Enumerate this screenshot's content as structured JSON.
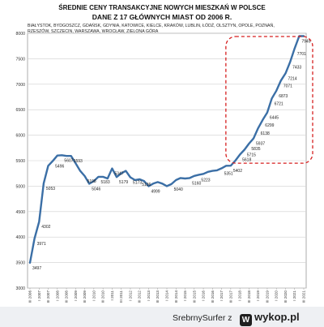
{
  "chart_data": {
    "type": "line",
    "title": "ŚREDNIE CENY TRANSAKCYJNE NOWYCH MIESZKAŃ W POLSCE",
    "subtitle": "DANE Z 17 GŁÓWNYCH MIAST OD 2006 R.",
    "cities_line_1": "BIAŁYSTOK, BYDGOSZCZ, GDAŃSK, GDYNIA, KATOWICE, KIELCE, KRAKÓW, LUBLIN, ŁÓDŹ, OLSZTYN, OPOLE, POZNAŃ,",
    "cities_line_2": "RZESZÓW, SZCZECIN, WARSZAWA, WROCŁAW, ZIELONA GÓRA",
    "ylim": [
      3000,
      8000
    ],
    "yticks": [
      3000,
      3500,
      4000,
      4500,
      5000,
      5500,
      6000,
      6500,
      7000,
      7500,
      8000
    ],
    "line_color": "#3b6fa6",
    "highlight_color": "#d61f1f",
    "highlight_range": [
      "III 2017",
      "III 2021"
    ],
    "x": [
      "III 2006",
      "IV 2006",
      "I 2007",
      "II 2007",
      "III 2007",
      "IV 2007",
      "I 2008",
      "II 2008",
      "III 2008",
      "IV 2008",
      "I 2009",
      "II 2009",
      "III 2009",
      "IV 2009",
      "I 2010",
      "II 2010",
      "III 2010",
      "IV 2010",
      "I 2011",
      "II 2011",
      "III 2011",
      "IV 2011",
      "I 2012",
      "II 2012",
      "III 2012",
      "IV 2012",
      "I 2013",
      "II 2013",
      "III 2013",
      "IV 2013",
      "I 2014",
      "II 2014",
      "III 2014",
      "IV 2014",
      "I 2015",
      "II 2015",
      "III 2015",
      "IV 2015",
      "I 2016",
      "II 2016",
      "III 2016",
      "IV 2016",
      "I 2017",
      "II 2017",
      "III 2017",
      "IV 2017",
      "I 2018",
      "II 2018",
      "III 2018",
      "IV 2018",
      "I 2019",
      "II 2019",
      "III 2019",
      "IV 2019",
      "I 2020",
      "II 2020",
      "III 2020",
      "IV 2020",
      "I 2021",
      "II 2021",
      "III 2021"
    ],
    "values": [
      3497,
      3971,
      4302,
      5053,
      5400,
      5496,
      5600,
      5607,
      5593,
      5593,
      5450,
      5300,
      5198,
      5046,
      5100,
      5183,
      5183,
      5150,
      5347,
      5179,
      5250,
      5300,
      5173,
      5120,
      5136,
      5100,
      4999,
      5050,
      5080,
      5050,
      5000,
      5040,
      5120,
      5160,
      5150,
      5160,
      5200,
      5223,
      5240,
      5280,
      5300,
      5310,
      5351,
      5400,
      5402,
      5500,
      5618,
      5715,
      5835,
      5937,
      6138,
      6299,
      6445,
      6721,
      6873,
      7071,
      7214,
      7433,
      7701,
      7945,
      7945
    ],
    "value_labels": [
      {
        "x": "III 2006",
        "text": "3497"
      },
      {
        "x": "IV 2006",
        "text": "3971"
      },
      {
        "x": "I 2007",
        "text": "4302"
      },
      {
        "x": "II 2007",
        "text": "5053"
      },
      {
        "x": "IV 2007",
        "text": "5496"
      },
      {
        "x": "II 2008",
        "text": "5607"
      },
      {
        "x": "IV 2008",
        "text": "5593"
      },
      {
        "x": "III 2009",
        "text": "5198"
      },
      {
        "x": "IV 2009",
        "text": "5046"
      },
      {
        "x": "II 2010",
        "text": "5183"
      },
      {
        "x": "I 2011",
        "text": "5347"
      },
      {
        "x": "II 2011",
        "text": "5179"
      },
      {
        "x": "I 2012",
        "text": "5173"
      },
      {
        "x": "III 2012",
        "text": "5136"
      },
      {
        "x": "I 2013",
        "text": "4999"
      },
      {
        "x": "II 2014",
        "text": "5040"
      },
      {
        "x": "II 2015",
        "text": "5160"
      },
      {
        "x": "IV 2015",
        "text": "5223"
      },
      {
        "x": "I 2017",
        "text": "5351"
      },
      {
        "x": "III 2017",
        "text": "5402"
      },
      {
        "x": "I 2018",
        "text": "5618"
      },
      {
        "x": "II 2018",
        "text": "5715"
      },
      {
        "x": "III 2018",
        "text": "5835"
      },
      {
        "x": "IV 2018",
        "text": "5937"
      },
      {
        "x": "I 2019",
        "text": "6138"
      },
      {
        "x": "II 2019",
        "text": "6299"
      },
      {
        "x": "III 2019",
        "text": "6445"
      },
      {
        "x": "IV 2019",
        "text": "6721"
      },
      {
        "x": "I 2020",
        "text": "6873"
      },
      {
        "x": "II 2020",
        "text": "7071"
      },
      {
        "x": "III 2020",
        "text": "7214"
      },
      {
        "x": "IV 2020",
        "text": "7433"
      },
      {
        "x": "I 2021",
        "text": "7701"
      },
      {
        "x": "II 2021",
        "text": "7945"
      }
    ]
  },
  "footer": {
    "user": "SrebrnySurfer",
    "separator": "z",
    "brand": "wykop.pl",
    "logo_glyph": "W"
  }
}
